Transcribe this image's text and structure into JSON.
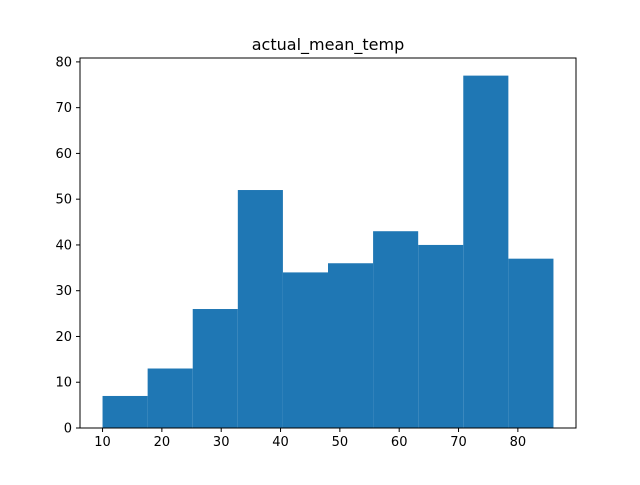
{
  "chart_data": {
    "type": "bar",
    "title": "actual_mean_temp",
    "xlabel": "",
    "ylabel": "",
    "bins": [
      {
        "start": 10.0,
        "end": 17.6,
        "count": 7
      },
      {
        "start": 17.6,
        "end": 25.2,
        "count": 13
      },
      {
        "start": 25.2,
        "end": 32.8,
        "count": 26
      },
      {
        "start": 32.8,
        "end": 40.4,
        "count": 52
      },
      {
        "start": 40.4,
        "end": 48.0,
        "count": 34
      },
      {
        "start": 48.0,
        "end": 55.6,
        "count": 36
      },
      {
        "start": 55.6,
        "end": 63.2,
        "count": 43
      },
      {
        "start": 63.2,
        "end": 70.8,
        "count": 40
      },
      {
        "start": 70.8,
        "end": 78.4,
        "count": 77
      },
      {
        "start": 78.4,
        "end": 86.0,
        "count": 37
      }
    ],
    "xlim": [
      6.2,
      89.8
    ],
    "ylim": [
      0,
      80.85
    ],
    "x_ticks": [
      10,
      20,
      30,
      40,
      50,
      60,
      70,
      80
    ],
    "y_ticks": [
      0,
      10,
      20,
      30,
      40,
      50,
      60,
      70,
      80
    ],
    "bar_color": "#1f77b4",
    "grid": false,
    "legend": "none"
  }
}
